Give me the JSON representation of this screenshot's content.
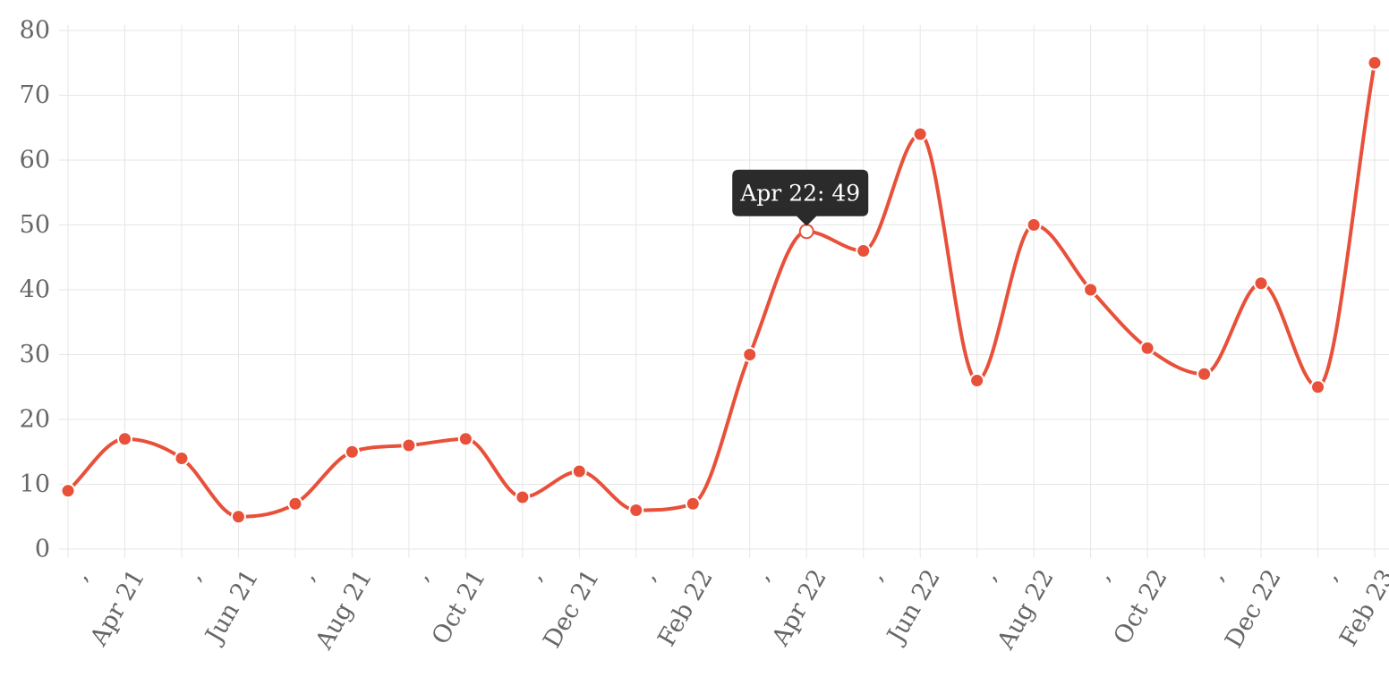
{
  "chart_data": {
    "type": "line",
    "categories": [
      ",",
      "Apr 21",
      ",",
      "Jun 21",
      ",",
      "Aug 21",
      ",",
      "Oct 21",
      ",",
      "Dec 21",
      ",",
      "Feb 22",
      ",",
      "Apr 22",
      ",",
      "Jun 22",
      ",",
      "Aug 22",
      ",",
      "Oct 22",
      ",",
      "Dec 22",
      ",",
      "Feb 23"
    ],
    "values": [
      9,
      17,
      14,
      5,
      7,
      15,
      16,
      17,
      8,
      12,
      6,
      7,
      30,
      49,
      46,
      64,
      26,
      50,
      40,
      31,
      27,
      41,
      25,
      75
    ],
    "y_ticks": [
      0,
      10,
      20,
      30,
      40,
      50,
      60,
      70,
      80
    ],
    "ylim": [
      0,
      80
    ],
    "title": "",
    "xlabel": "",
    "ylabel": "",
    "grid": true,
    "smooth": true,
    "line_color": "#e8503a",
    "point_color": "#e8503a",
    "tooltip": {
      "category": "Apr 22",
      "text": "Apr 22: 49",
      "index": 13
    }
  }
}
